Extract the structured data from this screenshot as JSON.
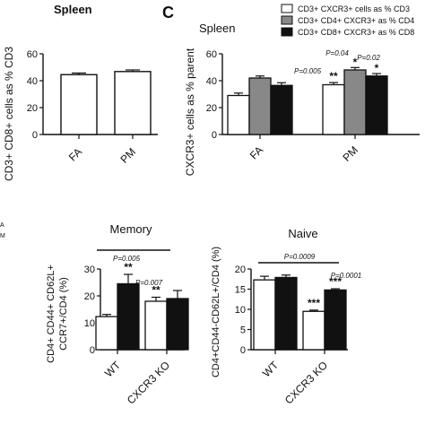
{
  "chart_data": [
    {
      "id": "a",
      "type": "bar",
      "title": "Spleen",
      "ylabel": "CD3+ CD8+ cells as % CD3",
      "categories": [
        "FA",
        "PM"
      ],
      "ylim": [
        0,
        60
      ],
      "yticks": [
        "0",
        "20",
        "40",
        "60"
      ],
      "series": [
        {
          "values": [
            44.5,
            46.8
          ],
          "errors": [
            1.2,
            1.2
          ],
          "colors": [
            "#ffffff",
            "#ffffff"
          ]
        }
      ]
    },
    {
      "id": "c",
      "type": "bar",
      "panel_letter": "C",
      "title": "Spleen",
      "ylabel": "CXCR3+ cells as % parent",
      "categories": [
        "FA",
        "PM"
      ],
      "ylim": [
        0,
        60
      ],
      "yticks": [
        "0",
        "20",
        "40",
        "60"
      ],
      "series": [
        {
          "name": "CD3+ CXCR3+ cells as % CD3",
          "color": "#ffffff",
          "values": [
            29,
            37
          ],
          "errors": [
            1.8,
            1.6
          ]
        },
        {
          "name": "CD3+ CD4+ CXCR3+ as % CD4",
          "color": "#888888",
          "values": [
            42,
            48
          ],
          "errors": [
            1.5,
            1.8
          ]
        },
        {
          "name": "CD3+ CD8+ CXCR3+ as % CD8",
          "color": "#111111",
          "values": [
            36.5,
            43.5
          ],
          "errors": [
            2.0,
            1.8
          ]
        }
      ],
      "annotations": [
        {
          "text": "**",
          "category": 1,
          "series": 0
        },
        {
          "text": "*",
          "category": 1,
          "series": 1
        },
        {
          "text": "*",
          "category": 1,
          "series": 2
        },
        {
          "text": "P=0.005",
          "category": 1,
          "series": 0
        },
        {
          "text": "P=0.04",
          "category": 1,
          "series": 1
        },
        {
          "text": "P=0.02",
          "category": 1,
          "series": 2
        }
      ]
    },
    {
      "id": "memory",
      "type": "bar",
      "title": "Memory",
      "ylabel_line1": "CD4+ CD44+ CD62L+",
      "ylabel_line2": "CCR7+/CD4 (%)",
      "categories": [
        "WT",
        "CXCR3 KO"
      ],
      "ylim": [
        0,
        30
      ],
      "yticks": [
        "0",
        "10",
        "20",
        "30"
      ],
      "series": [
        {
          "color": "#ffffff",
          "values": [
            12.3,
            18
          ],
          "errors": [
            0.8,
            1.5
          ]
        },
        {
          "color": "#111111",
          "values": [
            24.5,
            19
          ],
          "errors": [
            3.5,
            3.0
          ]
        }
      ],
      "annotations": [
        {
          "text": "**",
          "category": 0,
          "series": 1
        },
        {
          "text": "**",
          "category": 1,
          "series": 0
        },
        {
          "text": "P=0.005",
          "type": "bracket"
        },
        {
          "text": "P=0.007",
          "category": 1,
          "series": 0
        }
      ]
    },
    {
      "id": "naive",
      "type": "bar",
      "title": "Naive",
      "ylabel": "CD4+CD44-CD62L+/CD4 (%)",
      "categories": [
        "WT",
        "CXCR3 KO"
      ],
      "ylim": [
        0,
        20
      ],
      "yticks": [
        "0",
        "5",
        "10",
        "15",
        "20"
      ],
      "series": [
        {
          "color": "#ffffff",
          "values": [
            17.3,
            9.5
          ],
          "errors": [
            0.9,
            0.3
          ]
        },
        {
          "color": "#111111",
          "values": [
            17.9,
            14.8
          ],
          "errors": [
            0.6,
            0.3
          ]
        }
      ],
      "annotations": [
        {
          "text": "***",
          "category": 1,
          "series": 0
        },
        {
          "text": "***",
          "category": 1,
          "series": 1
        },
        {
          "text": "P=0.0009",
          "type": "bracket"
        },
        {
          "text": "P=0.0001",
          "category": 1,
          "series": 1
        }
      ]
    }
  ],
  "edge_fragments": [
    "A",
    "M"
  ]
}
